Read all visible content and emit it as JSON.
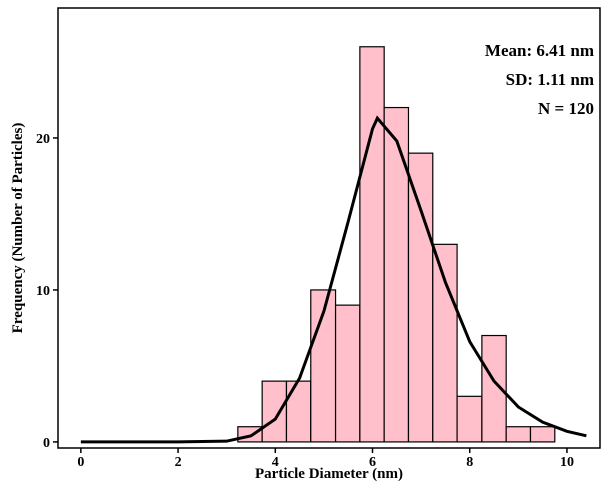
{
  "chart_data": {
    "type": "histogram",
    "xlabel": "Particle Diameter (nm)",
    "ylabel": "Frequency (Number of Particles)",
    "bins": [
      3.23,
      3.73,
      4.23,
      4.73,
      5.24,
      5.74,
      6.24,
      6.74,
      7.24,
      7.74,
      8.25,
      8.75,
      9.25,
      9.75
    ],
    "counts": [
      1,
      4,
      4,
      10,
      9,
      26,
      22,
      19,
      13,
      3,
      7,
      1,
      1
    ],
    "color": "#ffc0cb",
    "curve": {
      "color": "#000000",
      "x": [
        0,
        1,
        2,
        3,
        3.5,
        4,
        4.5,
        5,
        5.5,
        6,
        6.1,
        6.5,
        7,
        7.5,
        8,
        8.5,
        9,
        9.5,
        10,
        10.4
      ],
      "values": [
        0,
        0,
        0,
        0.05,
        0.4,
        1.5,
        4.2,
        8.6,
        14.5,
        20.6,
        21.3,
        19.8,
        15.2,
        10.5,
        6.6,
        4.0,
        2.3,
        1.3,
        0.7,
        0.4
      ]
    },
    "annotations": [
      "Mean: 6.41 nm",
      "SD: 1.11 nm",
      "N = 120"
    ],
    "xlim": [
      -0.47,
      10.68
    ],
    "ylim": [
      -0.4,
      28.55
    ],
    "xticks": [
      0,
      2,
      4,
      6,
      8,
      10
    ],
    "yticks": [
      0,
      10,
      20
    ]
  }
}
